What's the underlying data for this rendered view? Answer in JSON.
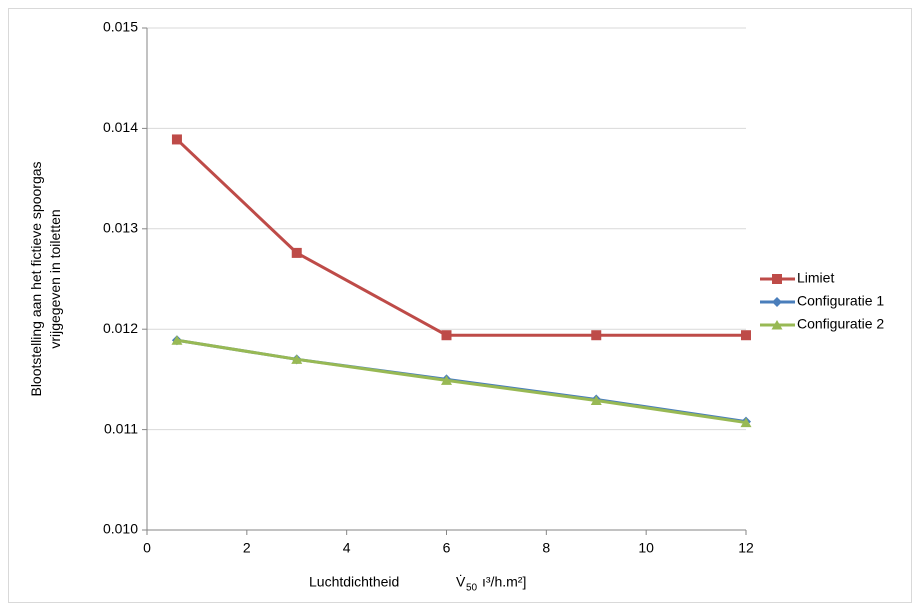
{
  "chart_data": {
    "type": "line",
    "ylabel": [
      "Blootstelling aan het fictieve spoorgas",
      "vrijgegeven in toiletten"
    ],
    "xlabel": [
      "Luchtdichtheid",
      "V̇",
      "50",
      "ı³/h.m²]"
    ],
    "x": [
      0.6,
      3,
      6,
      9,
      12
    ],
    "series": [
      {
        "name": "Limiet",
        "color": "#be4b48",
        "marker": "square",
        "values": [
          0.01389,
          0.01276,
          0.01194,
          0.01194,
          0.01194
        ]
      },
      {
        "name": "Configuratie 1",
        "color": "#4a7ebb",
        "marker": "diamond",
        "values": [
          0.01189,
          0.0117,
          0.0115,
          0.0113,
          0.01108
        ]
      },
      {
        "name": "Configuratie 2",
        "color": "#98b954",
        "marker": "triangle",
        "values": [
          0.01189,
          0.0117,
          0.01149,
          0.01129,
          0.01107
        ]
      }
    ],
    "xlim": [
      0,
      12
    ],
    "xticks": [
      0,
      2,
      4,
      6,
      8,
      10,
      12
    ],
    "ylim": [
      0.01,
      0.015
    ],
    "yticks": [
      {
        "value": 0.01,
        "label": "0.010"
      },
      0.011,
      0.012,
      0.013,
      0.014,
      0.015
    ],
    "grid": true,
    "legend": "right"
  }
}
